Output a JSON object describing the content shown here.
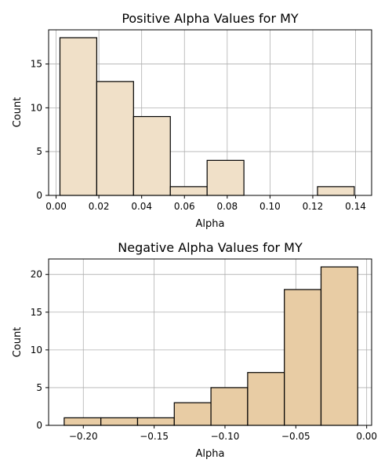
{
  "chart_data": [
    {
      "type": "bar",
      "title": "Positive Alpha Values for MY",
      "xlabel": "Alpha",
      "ylabel": "Count",
      "xlim": [
        -0.0035,
        0.1475
      ],
      "ylim": [
        0,
        18.9
      ],
      "bin_edges": [
        0.0018,
        0.019,
        0.0362,
        0.0534,
        0.0706,
        0.0878,
        0.105,
        0.1222,
        0.1394
      ],
      "values": [
        18,
        13,
        9,
        1,
        4,
        0,
        0,
        1
      ],
      "xticks": [
        0.0,
        0.02,
        0.04,
        0.06,
        0.08,
        0.1,
        0.12,
        0.14
      ],
      "xtick_labels": [
        "0.00",
        "0.02",
        "0.04",
        "0.06",
        "0.08",
        "0.10",
        "0.12",
        "0.14"
      ],
      "yticks": [
        0,
        5,
        10,
        15
      ],
      "ytick_labels": [
        "0",
        "5",
        "10",
        "15"
      ],
      "grid": true,
      "colors": {
        "bar_fill": "#f0e0c8",
        "bar_edge": "#000000",
        "grid": "#b0b0b0"
      }
    },
    {
      "type": "bar",
      "title": "Negative Alpha Values for MY",
      "xlabel": "Alpha",
      "ylabel": "Count",
      "xlim": [
        -0.2245,
        0.0035
      ],
      "ylim": [
        0,
        22.05
      ],
      "bin_edges": [
        -0.2135,
        -0.1876,
        -0.1617,
        -0.1358,
        -0.1099,
        -0.084,
        -0.0581,
        -0.0322,
        -0.0063
      ],
      "values": [
        1,
        1,
        1,
        3,
        5,
        7,
        18,
        21
      ],
      "xticks": [
        -0.2,
        -0.15,
        -0.1,
        -0.05,
        0.0
      ],
      "xtick_labels": [
        "−0.20",
        "−0.15",
        "−0.10",
        "−0.05",
        "0.00"
      ],
      "yticks": [
        0,
        5,
        10,
        15,
        20
      ],
      "ytick_labels": [
        "0",
        "5",
        "10",
        "15",
        "20"
      ],
      "grid": true,
      "colors": {
        "bar_fill": "#e8cca4",
        "bar_edge": "#000000",
        "grid": "#b0b0b0"
      }
    }
  ]
}
